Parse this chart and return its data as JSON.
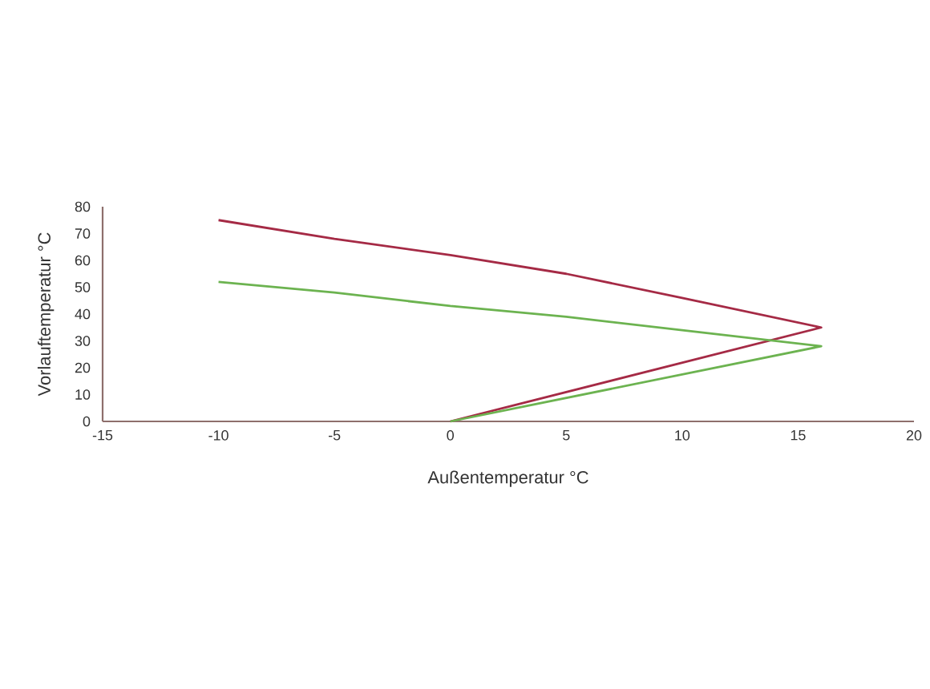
{
  "chart_data": {
    "type": "line",
    "xlabel": "Außentemperatur °C",
    "ylabel": "Vorlauftemperatur °C",
    "series": [
      {
        "color": "#a52a45",
        "x": [
          -10,
          -5,
          0,
          5,
          10,
          16,
          0
        ],
        "values": [
          75,
          68,
          62,
          55,
          46,
          35,
          0
        ]
      },
      {
        "color": "#6cb350",
        "x": [
          -10,
          -5,
          0,
          5,
          10,
          16,
          0
        ],
        "values": [
          52,
          48,
          43,
          39,
          34,
          28,
          0
        ]
      }
    ],
    "xlim": [
      -15,
      20
    ],
    "ylim": [
      0,
      80
    ],
    "xticks": [
      -15,
      -10,
      -5,
      0,
      5,
      10,
      15,
      20
    ],
    "yticks": [
      0,
      10,
      20,
      30,
      40,
      50,
      60,
      70,
      80
    ],
    "grid": false,
    "legend": false,
    "marker": "none",
    "line_style": "solid"
  }
}
